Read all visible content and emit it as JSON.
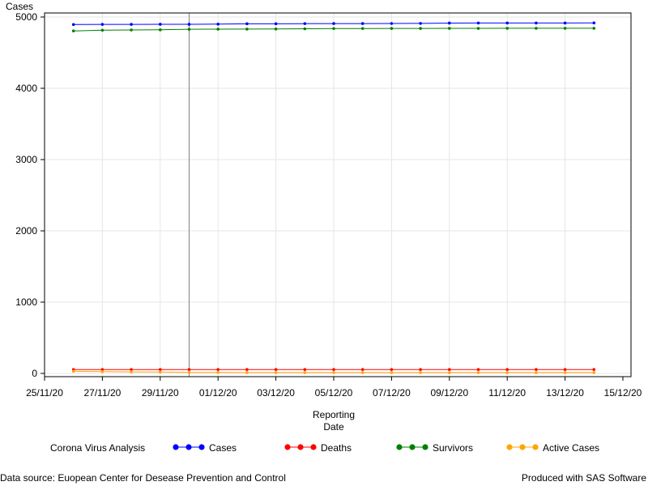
{
  "chart_data": {
    "type": "line",
    "ylabel": "Cases",
    "xlabel_line1": "Reporting",
    "xlabel_line2": "Date",
    "ylim": [
      0,
      5000
    ],
    "y_ticks": [
      0,
      1000,
      2000,
      3000,
      4000,
      5000
    ],
    "x_tick_labels": [
      "25/11/20",
      "27/11/20",
      "29/11/20",
      "01/12/20",
      "03/12/20",
      "05/12/20",
      "07/12/20",
      "09/12/20",
      "11/12/20",
      "13/12/20",
      "15/12/20"
    ],
    "x_range_days": [
      "2020-11-25",
      "2020-12-15"
    ],
    "reference_line_date": "2020-11-30",
    "grid": true,
    "legend_title": "Corona Virus Analysis",
    "legend_position": "bottom",
    "dates": [
      "2020-11-26",
      "2020-11-27",
      "2020-11-28",
      "2020-11-29",
      "2020-11-30",
      "2020-12-01",
      "2020-12-02",
      "2020-12-03",
      "2020-12-04",
      "2020-12-05",
      "2020-12-06",
      "2020-12-07",
      "2020-12-08",
      "2020-12-09",
      "2020-12-10",
      "2020-12-11",
      "2020-12-12",
      "2020-12-13",
      "2020-12-14"
    ],
    "series": [
      {
        "name": "Cases",
        "color": "#0000ff",
        "values": [
          4895,
          4897,
          4897,
          4898,
          4898,
          4900,
          4905,
          4905,
          4907,
          4908,
          4908,
          4909,
          4910,
          4915,
          4916,
          4916,
          4916,
          4916,
          4917
        ]
      },
      {
        "name": "Deaths",
        "color": "#ff0000",
        "values": [
          55,
          55,
          55,
          55,
          55,
          55,
          55,
          55,
          55,
          55,
          55,
          55,
          55,
          55,
          55,
          55,
          55,
          55,
          55
        ]
      },
      {
        "name": "Survivors",
        "color": "#008000",
        "values": [
          4805,
          4815,
          4818,
          4820,
          4828,
          4830,
          4831,
          4832,
          4835,
          4838,
          4839,
          4840,
          4840,
          4841,
          4841,
          4842,
          4842,
          4842,
          4842
        ]
      },
      {
        "name": "Active Cases",
        "color": "#ffa500",
        "values": [
          30,
          25,
          22,
          20,
          15,
          14,
          13,
          12,
          12,
          12,
          12,
          12,
          12,
          12,
          12,
          12,
          12,
          12,
          12
        ]
      }
    ]
  },
  "footer": {
    "source": "Data source: Euopean Center for Desease Prevention and Control",
    "produced": "Produced with SAS Software"
  }
}
